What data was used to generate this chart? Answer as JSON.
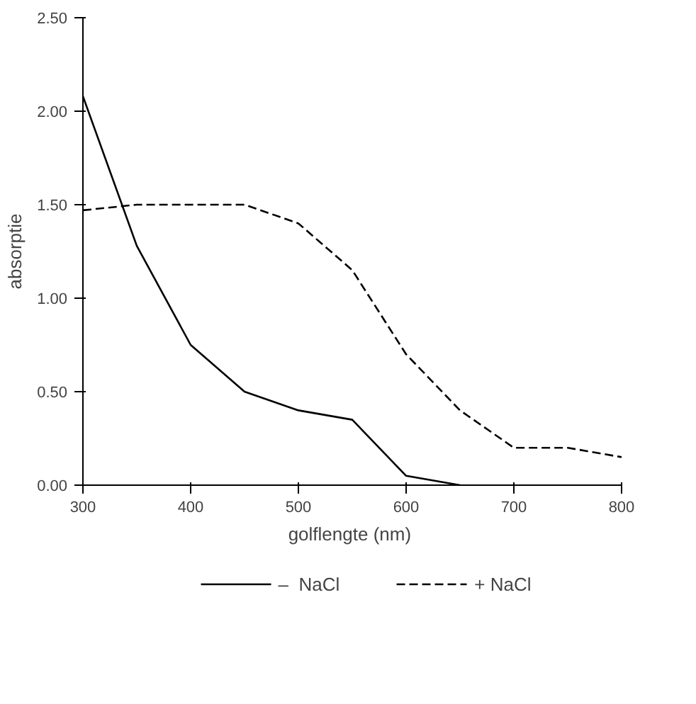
{
  "chart_data": {
    "type": "line",
    "xlabel": "golflengte  (nm)",
    "ylabel": "absorptie",
    "xlim": [
      300,
      800
    ],
    "ylim": [
      0,
      2.5
    ],
    "xticks": [
      300,
      400,
      500,
      600,
      700,
      800
    ],
    "yticks": [
      {
        "value": 0,
        "label": "0.00"
      },
      {
        "value": 0.5,
        "label": "0.50"
      },
      {
        "value": 1.0,
        "label": "1.00"
      },
      {
        "value": 1.5,
        "label": "1.50"
      },
      {
        "value": 2.0,
        "label": "2.00"
      },
      {
        "value": 2.5,
        "label": "2.50"
      }
    ],
    "grid": false,
    "legend": "bottom",
    "marker": "none",
    "series": [
      {
        "name": "–  NaCl",
        "color": "#000000",
        "line_style": "solid",
        "x": [
          300,
          350,
          400,
          450,
          500,
          550,
          600,
          650
        ],
        "values": [
          2.08,
          1.28,
          0.75,
          0.5,
          0.4,
          0.35,
          0.05,
          0.0
        ]
      },
      {
        "name": "+ NaCl",
        "color": "#000000",
        "line_style": "dashed",
        "x": [
          300,
          350,
          400,
          450,
          500,
          550,
          600,
          650,
          700,
          750,
          800
        ],
        "values": [
          1.47,
          1.5,
          1.5,
          1.5,
          1.4,
          1.15,
          0.7,
          0.4,
          0.2,
          0.2,
          0.15
        ]
      }
    ]
  }
}
